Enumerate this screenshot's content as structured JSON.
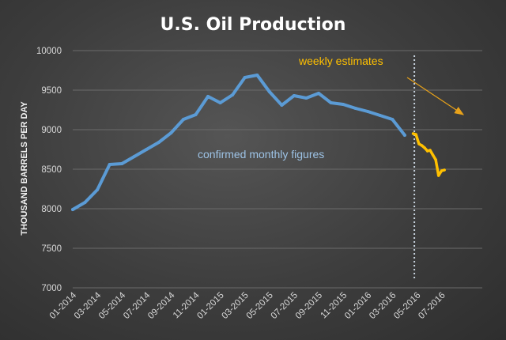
{
  "chart_data": {
    "type": "line",
    "title": "U.S. Oil Production",
    "xlabel": "",
    "ylabel": "THOUSAND BARRELS PER DAY",
    "ylim": [
      7000,
      10000
    ],
    "y_ticks": [
      7000,
      7500,
      8000,
      8500,
      9000,
      9500,
      10000
    ],
    "x_tick_labels": [
      "01-2014",
      "03-2014",
      "05-2014",
      "07-2014",
      "09-2014",
      "11-2014",
      "01-2015",
      "03-2015",
      "05-2015",
      "07-2015",
      "09-2015",
      "11-2015",
      "01-2016",
      "03-2016",
      "05-2016",
      "07-2016"
    ],
    "grid": "horizontal",
    "series": [
      {
        "name": "confirmed monthly figures",
        "color": "#5b9bd5",
        "points": [
          {
            "x": "2014-01",
            "y": 7990
          },
          {
            "x": "2014-02",
            "y": 8080
          },
          {
            "x": "2014-03",
            "y": 8240
          },
          {
            "x": "2014-04",
            "y": 8560
          },
          {
            "x": "2014-05",
            "y": 8570
          },
          {
            "x": "2014-06",
            "y": 8660
          },
          {
            "x": "2014-07",
            "y": 8750
          },
          {
            "x": "2014-08",
            "y": 8840
          },
          {
            "x": "2014-09",
            "y": 8960
          },
          {
            "x": "2014-10",
            "y": 9130
          },
          {
            "x": "2014-11",
            "y": 9190
          },
          {
            "x": "2014-12",
            "y": 9420
          },
          {
            "x": "2015-01",
            "y": 9340
          },
          {
            "x": "2015-02",
            "y": 9440
          },
          {
            "x": "2015-03",
            "y": 9660
          },
          {
            "x": "2015-04",
            "y": 9690
          },
          {
            "x": "2015-05",
            "y": 9480
          },
          {
            "x": "2015-06",
            "y": 9310
          },
          {
            "x": "2015-07",
            "y": 9430
          },
          {
            "x": "2015-08",
            "y": 9400
          },
          {
            "x": "2015-09",
            "y": 9460
          },
          {
            "x": "2015-10",
            "y": 9340
          },
          {
            "x": "2015-11",
            "y": 9320
          },
          {
            "x": "2015-12",
            "y": 9270
          },
          {
            "x": "2016-01",
            "y": 9230
          },
          {
            "x": "2016-02",
            "y": 9180
          },
          {
            "x": "2016-03",
            "y": 9130
          },
          {
            "x": "2016-04",
            "y": 8930
          }
        ]
      },
      {
        "name": "weekly estimates",
        "color": "#ffc000",
        "points": [
          {
            "x": "2016-04-22",
            "y": 8950
          },
          {
            "x": "2016-04-29",
            "y": 8940
          },
          {
            "x": "2016-05-06",
            "y": 8820
          },
          {
            "x": "2016-05-13",
            "y": 8800
          },
          {
            "x": "2016-05-20",
            "y": 8770
          },
          {
            "x": "2016-05-27",
            "y": 8730
          },
          {
            "x": "2016-06-03",
            "y": 8740
          },
          {
            "x": "2016-06-10",
            "y": 8680
          },
          {
            "x": "2016-06-17",
            "y": 8620
          },
          {
            "x": "2016-06-24",
            "y": 8420
          },
          {
            "x": "2016-07-01",
            "y": 8480
          },
          {
            "x": "2016-07-08",
            "y": 8490
          }
        ]
      }
    ],
    "divider_x": "2016-04-25",
    "annotations": [
      {
        "text": "weekly estimates",
        "color": "#ffc000"
      },
      {
        "text": "confirmed monthly figures",
        "color": "#9dc3e6"
      }
    ]
  }
}
